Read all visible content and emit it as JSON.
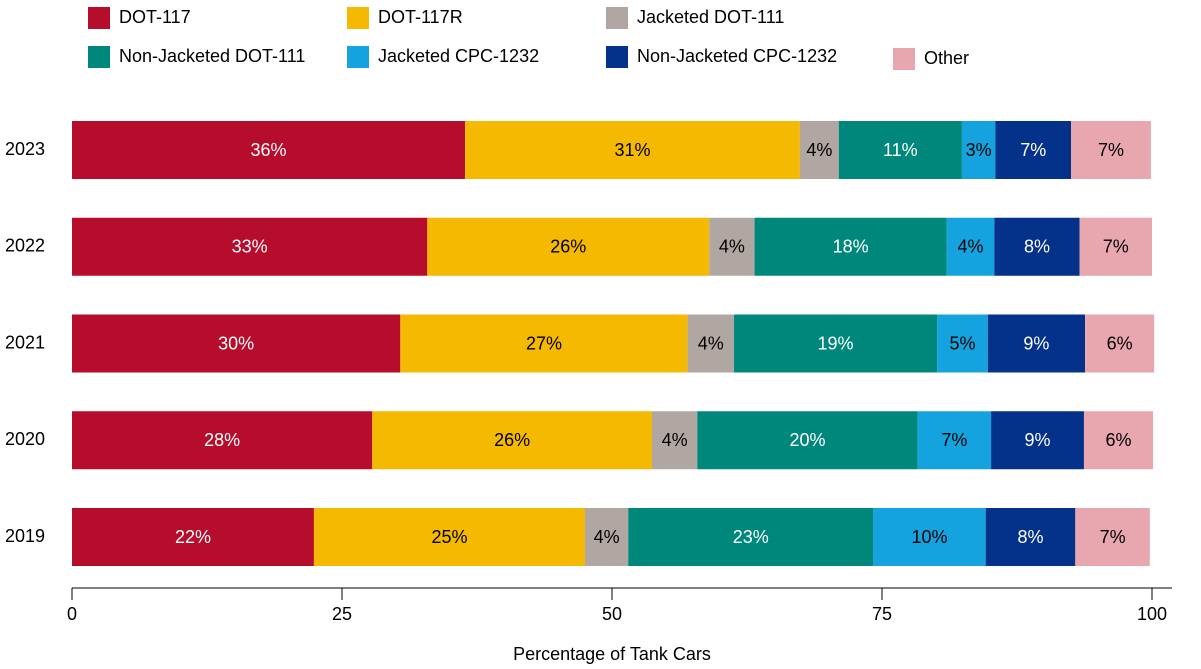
{
  "chart_data": {
    "type": "stacked-barh",
    "xlabel": "Percentage of Tank Cars",
    "categories": [
      "2023",
      "2022",
      "2021",
      "2020",
      "2019"
    ],
    "series": [
      {
        "name": "DOT-117",
        "color": "#b70d2d",
        "label_color": "#ffffff",
        "values": [
          36.4,
          32.9,
          30.4,
          27.8,
          22.4
        ],
        "value_labels": [
          "36%",
          "33%",
          "30%",
          "28%",
          "22%"
        ]
      },
      {
        "name": "DOT-117R",
        "color": "#f4b900",
        "label_color": "#000000",
        "values": [
          31.0,
          26.1,
          26.6,
          25.9,
          25.1
        ],
        "value_labels": [
          "31%",
          "26%",
          "27%",
          "26%",
          "25%"
        ]
      },
      {
        "name": "Jacketed DOT-111",
        "color": "#b1a7a2",
        "label_color": "#000000",
        "values": [
          3.6,
          4.2,
          4.3,
          4.2,
          4.0
        ],
        "value_labels": [
          "4%",
          "4%",
          "4%",
          "4%",
          "4%"
        ]
      },
      {
        "name": "Non-Jacketed DOT-111",
        "color": "#00877b",
        "label_color": "#ffffff",
        "values": [
          11.4,
          17.8,
          18.8,
          20.4,
          22.7
        ],
        "value_labels": [
          "11%",
          "18%",
          "19%",
          "20%",
          "23%"
        ]
      },
      {
        "name": "Jacketed CPC-1232",
        "color": "#14a3df",
        "label_color": "#000000",
        "values": [
          3.1,
          4.4,
          4.7,
          6.8,
          10.4
        ],
        "value_labels": [
          "3%",
          "4%",
          "5%",
          "7%",
          "10%"
        ]
      },
      {
        "name": "Non-Jacketed CPC-1232",
        "color": "#04318a",
        "label_color": "#ffffff",
        "values": [
          7.0,
          7.9,
          9.0,
          8.6,
          8.3
        ],
        "value_labels": [
          "7%",
          "8%",
          "9%",
          "9%",
          "8%"
        ]
      },
      {
        "name": "Other",
        "color": "#e8a7af",
        "label_color": "#000000",
        "values": [
          7.4,
          6.7,
          6.4,
          6.4,
          6.9
        ],
        "value_labels": [
          "7%",
          "7%",
          "6%",
          "6%",
          "7%"
        ]
      }
    ],
    "xlim": [
      0,
      100
    ],
    "xticks": [
      0,
      25,
      50,
      75,
      100
    ]
  }
}
